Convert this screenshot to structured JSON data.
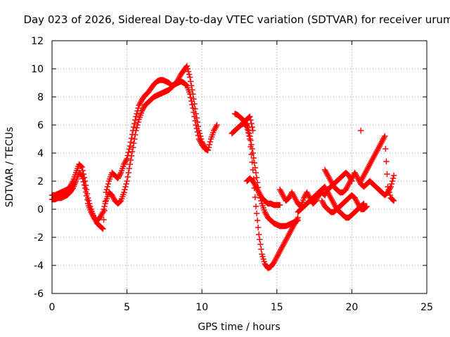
{
  "chart_data": {
    "type": "scatter",
    "title": "Day 023 of 2026, Sidereal Day-to-day VTEC variation (SDTVAR) for receiver urum",
    "xlabel": "GPS time / hours",
    "ylabel": "SDTVAR / TECUs",
    "xlim": [
      0,
      25
    ],
    "ylim": [
      -6,
      12
    ],
    "xticks": [
      "0",
      "5",
      "10",
      "15",
      "20",
      "25"
    ],
    "yticks": [
      "-6",
      "-4",
      "-2",
      "0",
      "2",
      "4",
      "6",
      "8",
      "10",
      "12"
    ],
    "grid": true,
    "marker": "+",
    "color": "#ff0000",
    "series": [
      {
        "x": [
          0.0,
          0.2,
          0.4,
          0.6,
          0.8,
          1.0,
          1.2,
          1.4,
          1.6,
          1.8,
          2.0,
          2.2,
          2.4,
          2.6,
          2.8,
          3.0,
          3.2,
          3.4,
          3.6,
          3.8,
          4.0,
          4.2,
          4.4,
          4.6,
          4.8,
          5.0,
          5.2,
          5.4,
          5.6,
          5.8,
          6.0,
          6.2,
          6.4,
          6.6,
          6.8,
          7.0,
          7.2,
          7.4,
          7.6,
          7.8,
          8.0,
          8.2,
          8.4,
          8.6,
          8.8,
          9.0,
          9.2,
          9.4,
          9.6,
          9.8,
          10.0,
          10.2,
          10.4,
          10.6,
          10.8,
          11.0
        ],
        "y": [
          1.0,
          1.0,
          1.1,
          1.2,
          1.3,
          1.4,
          1.6,
          2.0,
          2.6,
          3.2,
          3.0,
          2.0,
          0.8,
          0.0,
          -0.6,
          -1.0,
          -1.2,
          -1.4,
          1.2,
          2.0,
          2.6,
          2.4,
          2.2,
          2.6,
          3.2,
          3.6,
          4.5,
          5.6,
          6.6,
          7.4,
          7.8,
          8.1,
          8.3,
          8.6,
          8.9,
          9.1,
          9.2,
          9.2,
          9.1,
          9.0,
          8.8,
          8.9,
          9.2,
          9.6,
          9.9,
          10.2,
          9.4,
          8.2,
          6.8,
          5.6,
          4.8,
          4.4,
          4.2,
          5.0,
          5.6,
          6.0
        ]
      },
      {
        "x": [
          0.0,
          0.2,
          0.4,
          0.6,
          0.8,
          1.0,
          1.2,
          1.4,
          1.6,
          1.8,
          2.0,
          2.2,
          2.4,
          2.6,
          2.8,
          3.0,
          3.2,
          3.4,
          3.6,
          3.8,
          4.0,
          4.2,
          4.4,
          4.6,
          4.8,
          5.0,
          5.2,
          5.4,
          5.6,
          5.8,
          6.0,
          6.2,
          6.4,
          6.6,
          6.8,
          7.0,
          7.2,
          7.4,
          7.6,
          7.8,
          8.0,
          8.2,
          8.4,
          8.6,
          8.8,
          9.0,
          9.2,
          9.4,
          9.6,
          9.8,
          10.0,
          10.2,
          10.4
        ],
        "y": [
          0.7,
          0.7,
          0.8,
          0.8,
          0.9,
          1.0,
          1.2,
          1.5,
          2.0,
          2.6,
          2.4,
          1.5,
          0.4,
          -0.2,
          -0.6,
          -0.8,
          -0.6,
          -0.2,
          0.6,
          1.2,
          1.0,
          0.6,
          0.4,
          0.6,
          1.2,
          2.0,
          3.2,
          4.4,
          5.6,
          6.4,
          7.0,
          7.4,
          7.6,
          7.8,
          8.0,
          8.1,
          8.2,
          8.3,
          8.4,
          8.5,
          8.7,
          8.9,
          9.0,
          9.1,
          9.0,
          8.8,
          8.2,
          7.2,
          6.0,
          5.0,
          4.6,
          4.3,
          4.2
        ]
      },
      {
        "x": [
          12.0,
          12.2,
          12.4,
          12.6,
          12.8,
          13.0,
          13.2,
          13.4,
          13.6,
          13.8,
          14.0,
          14.2,
          14.4,
          14.6,
          14.8,
          15.0,
          15.2,
          15.4,
          15.6,
          15.8,
          16.0,
          16.2,
          16.4
        ],
        "y": [
          5.4,
          5.6,
          5.8,
          6.0,
          6.1,
          5.9,
          5.0,
          2.8,
          0.2,
          -1.8,
          -3.2,
          -3.9,
          -4.2,
          -4.1,
          -3.8,
          -3.4,
          -3.0,
          -2.6,
          -2.2,
          -1.8,
          -1.4,
          -1.0,
          -0.6
        ]
      },
      {
        "x": [
          12.2,
          12.4,
          12.6,
          12.8,
          13.0,
          13.2,
          13.4,
          13.6,
          13.8,
          14.0,
          14.2,
          14.4,
          14.6,
          14.8,
          15.0,
          15.2,
          15.4,
          15.6,
          15.8,
          16.0,
          16.2,
          16.4
        ],
        "y": [
          6.8,
          6.7,
          6.5,
          6.3,
          6.0,
          5.2,
          4.0,
          2.6,
          1.2,
          0.4,
          -0.2,
          -0.6,
          -0.8,
          -1.0,
          -1.1,
          -1.2,
          -1.2,
          -1.2,
          -1.1,
          -1.0,
          -0.9,
          -0.8
        ]
      },
      {
        "x": [
          13.0,
          13.2,
          13.4,
          13.6,
          13.8,
          14.0,
          14.2,
          14.4,
          14.6,
          14.8,
          15.0,
          15.2
        ],
        "y": [
          2.0,
          2.2,
          2.0,
          1.6,
          1.2,
          0.8,
          0.6,
          0.4,
          0.4,
          0.3,
          0.3,
          0.3
        ]
      },
      {
        "x": [
          12.8,
          13.0,
          13.2,
          13.4
        ],
        "y": [
          6.2,
          6.4,
          6.6,
          5.6
        ]
      },
      {
        "x": [
          15.2,
          15.4,
          15.6,
          15.8,
          16.0,
          16.2,
          16.4,
          16.6,
          16.8,
          17.0,
          17.2,
          17.4,
          17.6,
          17.8,
          18.0,
          18.2,
          18.4,
          18.6,
          18.8,
          19.0,
          19.2,
          19.4,
          19.6,
          19.8,
          20.0
        ],
        "y": [
          1.4,
          1.0,
          0.6,
          0.8,
          1.2,
          0.8,
          0.4,
          0.2,
          0.8,
          1.2,
          0.8,
          0.4,
          0.6,
          1.0,
          1.2,
          1.0,
          1.4,
          1.6,
          1.8,
          2.0,
          2.2,
          2.4,
          2.6,
          2.4,
          2.0
        ]
      },
      {
        "x": [
          16.4,
          16.6,
          16.8,
          17.0,
          17.2,
          17.4,
          17.6,
          17.8,
          18.0,
          18.2,
          18.4,
          18.6,
          18.8,
          19.0,
          19.2,
          19.4,
          19.6,
          19.8,
          20.0,
          20.2,
          20.4,
          20.6,
          20.8
        ],
        "y": [
          -0.2,
          0.0,
          0.2,
          0.4,
          0.6,
          0.8,
          1.0,
          1.2,
          1.4,
          1.6,
          1.2,
          0.8,
          0.4,
          0.0,
          -0.2,
          -0.4,
          -0.6,
          -0.6,
          -0.4,
          -0.2,
          0.0,
          0.2,
          0.4
        ]
      },
      {
        "x": [
          18.2,
          18.4,
          18.6,
          18.8,
          19.0,
          19.2,
          19.4,
          19.6,
          19.8,
          20.0,
          20.2,
          20.4,
          20.6,
          20.8,
          21.0,
          21.2,
          21.4,
          21.6,
          21.8,
          22.0,
          22.2,
          22.4,
          22.6,
          22.8
        ],
        "y": [
          2.8,
          2.4,
          2.0,
          1.6,
          1.4,
          1.2,
          1.2,
          1.4,
          1.8,
          2.2,
          2.6,
          2.2,
          1.8,
          1.6,
          1.8,
          2.0,
          1.8,
          1.6,
          1.4,
          1.2,
          1.0,
          1.2,
          1.6,
          2.4
        ]
      },
      {
        "x": [
          20.6,
          20.8,
          21.0,
          21.2,
          21.4,
          21.6,
          21.8,
          22.0,
          22.2,
          22.4,
          22.6,
          22.8
        ],
        "y": [
          2.0,
          2.4,
          2.8,
          3.2,
          3.6,
          4.0,
          4.4,
          4.8,
          5.2,
          1.6,
          0.8,
          0.6
        ]
      },
      {
        "x": [
          18.0,
          18.2,
          18.4,
          18.6,
          18.8,
          19.0,
          19.2,
          19.4,
          19.6,
          19.8,
          20.0,
          20.2,
          20.4,
          20.6,
          20.8,
          21.0
        ],
        "y": [
          0.6,
          0.2,
          0.0,
          -0.2,
          -0.2,
          0.0,
          0.2,
          0.4,
          0.6,
          0.8,
          1.0,
          0.8,
          0.4,
          0.0,
          0.0,
          0.2
        ]
      },
      {
        "x": [
          20.6
        ],
        "y": [
          5.6
        ]
      }
    ]
  }
}
